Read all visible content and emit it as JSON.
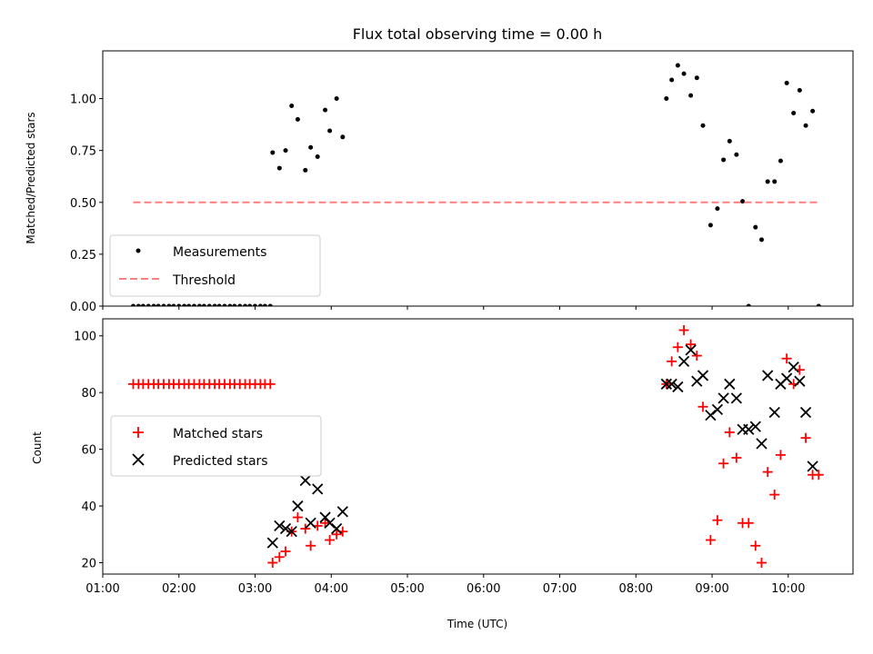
{
  "chart_data": [
    {
      "type": "scatter",
      "title": "Flux total observing time = 0.00 h",
      "xlabel": "",
      "ylabel": "Matched/Predicted stars",
      "xlim": [
        1.0,
        10.85
      ],
      "ylim": [
        0,
        1.23
      ],
      "x_tick_values": [
        1,
        2,
        3,
        4,
        5,
        6,
        7,
        8,
        9,
        10
      ],
      "x_tick_labels_shown": false,
      "y_ticks": [
        0,
        0.25,
        0.5,
        0.75,
        1.0
      ],
      "y_tick_labels": [
        "0.00",
        "0.25",
        "0.50",
        "0.75",
        "1.00"
      ],
      "grid": false,
      "legend_position": "lower-left",
      "legend": [
        "Measurements",
        "Threshold"
      ],
      "series": [
        {
          "name": "Measurements",
          "marker": "dot",
          "color": "#000000",
          "x": [
            1.4,
            1.47,
            1.53,
            1.6,
            1.67,
            1.73,
            1.8,
            1.87,
            1.93,
            2.0,
            2.07,
            2.13,
            2.2,
            2.27,
            2.33,
            2.4,
            2.47,
            2.53,
            2.6,
            2.67,
            2.73,
            2.8,
            2.87,
            2.93,
            3.0,
            3.07,
            3.13,
            3.2,
            3.23,
            3.32,
            3.4,
            3.48,
            3.56,
            3.66,
            3.73,
            3.82,
            3.92,
            3.98,
            4.07,
            4.15,
            8.4,
            8.47,
            8.55,
            8.63,
            8.72,
            8.8,
            8.88,
            8.98,
            9.07,
            9.15,
            9.23,
            9.32,
            9.4,
            9.48,
            9.57,
            9.65,
            9.73,
            9.82,
            9.9,
            9.98,
            10.07,
            10.15,
            10.23,
            10.32,
            10.4
          ],
          "y": [
            0,
            0,
            0,
            0,
            0,
            0,
            0,
            0,
            0,
            0,
            0,
            0,
            0,
            0,
            0,
            0,
            0,
            0,
            0,
            0,
            0,
            0,
            0,
            0,
            0,
            0,
            0,
            0,
            0.74,
            0.665,
            0.75,
            0.965,
            0.9,
            0.655,
            0.765,
            0.72,
            0.945,
            0.845,
            1.0,
            0.815,
            1.0,
            1.09,
            1.16,
            1.12,
            1.015,
            1.1,
            0.87,
            0.39,
            0.47,
            0.705,
            0.795,
            0.73,
            0.505,
            0,
            0.38,
            0.32,
            0.6,
            0.6,
            0.7,
            1.075,
            0.93,
            1.04,
            0.87,
            0.94,
            0
          ]
        },
        {
          "name": "Threshold",
          "type": "line",
          "style": "dashed",
          "color": "#ff7f7f",
          "x": [
            1.4,
            10.4
          ],
          "y": [
            0.5,
            0.5
          ]
        }
      ]
    },
    {
      "type": "scatter",
      "title": "",
      "xlabel": "Time (UTC)",
      "ylabel": "Count",
      "xlim": [
        1.0,
        10.85
      ],
      "ylim": [
        16,
        106
      ],
      "x_tick_values": [
        1,
        2,
        3,
        4,
        5,
        6,
        7,
        8,
        9,
        10
      ],
      "x_tick_labels": [
        "01:00",
        "02:00",
        "03:00",
        "04:00",
        "05:00",
        "06:00",
        "07:00",
        "08:00",
        "09:00",
        "10:00"
      ],
      "y_ticks": [
        20,
        40,
        60,
        80,
        100
      ],
      "y_tick_labels": [
        "20",
        "40",
        "60",
        "80",
        "100"
      ],
      "grid": false,
      "legend_position": "center-left",
      "legend": [
        "Matched stars",
        "Predicted stars"
      ],
      "series": [
        {
          "name": "Matched stars",
          "marker": "plus",
          "color": "#ff0000",
          "x": [
            1.4,
            1.47,
            1.53,
            1.6,
            1.67,
            1.73,
            1.8,
            1.87,
            1.93,
            2.0,
            2.07,
            2.13,
            2.2,
            2.27,
            2.33,
            2.4,
            2.47,
            2.53,
            2.6,
            2.67,
            2.73,
            2.8,
            2.87,
            2.93,
            3.0,
            3.07,
            3.13,
            3.2,
            3.23,
            3.32,
            3.4,
            3.48,
            3.56,
            3.66,
            3.73,
            3.82,
            3.92,
            3.98,
            4.07,
            4.15,
            8.4,
            8.47,
            8.55,
            8.63,
            8.72,
            8.8,
            8.88,
            8.98,
            9.07,
            9.15,
            9.23,
            9.32,
            9.4,
            9.48,
            9.57,
            9.65,
            9.73,
            9.82,
            9.9,
            9.98,
            10.07,
            10.15,
            10.23,
            10.32,
            10.4
          ],
          "y": [
            83,
            83,
            83,
            83,
            83,
            83,
            83,
            83,
            83,
            83,
            83,
            83,
            83,
            83,
            83,
            83,
            83,
            83,
            83,
            83,
            83,
            83,
            83,
            83,
            83,
            83,
            83,
            83,
            20,
            22,
            24,
            31,
            36,
            32,
            26,
            33,
            34,
            28,
            30,
            31,
            83,
            91,
            96,
            102,
            97,
            93,
            75,
            28,
            35,
            55,
            66,
            57,
            34,
            34,
            26,
            20,
            52,
            44,
            58,
            92,
            83,
            88,
            64,
            51,
            51
          ]
        },
        {
          "name": "Predicted stars",
          "marker": "x",
          "color": "#000000",
          "x": [
            3.23,
            3.32,
            3.4,
            3.48,
            3.56,
            3.66,
            3.73,
            3.82,
            3.92,
            3.98,
            4.07,
            4.15,
            8.4,
            8.47,
            8.55,
            8.63,
            8.72,
            8.8,
            8.88,
            8.98,
            9.07,
            9.15,
            9.23,
            9.32,
            9.4,
            9.48,
            9.57,
            9.65,
            9.73,
            9.82,
            9.9,
            9.98,
            10.07,
            10.15,
            10.23,
            10.32
          ],
          "y": [
            27,
            33,
            32,
            31,
            40,
            49,
            34,
            46,
            36,
            34,
            32,
            38,
            83,
            83,
            82,
            91,
            95,
            84,
            86,
            72,
            74,
            78,
            83,
            78,
            67,
            67,
            68,
            62,
            86,
            73,
            83,
            85,
            89,
            84,
            73,
            54
          ]
        }
      ]
    }
  ]
}
